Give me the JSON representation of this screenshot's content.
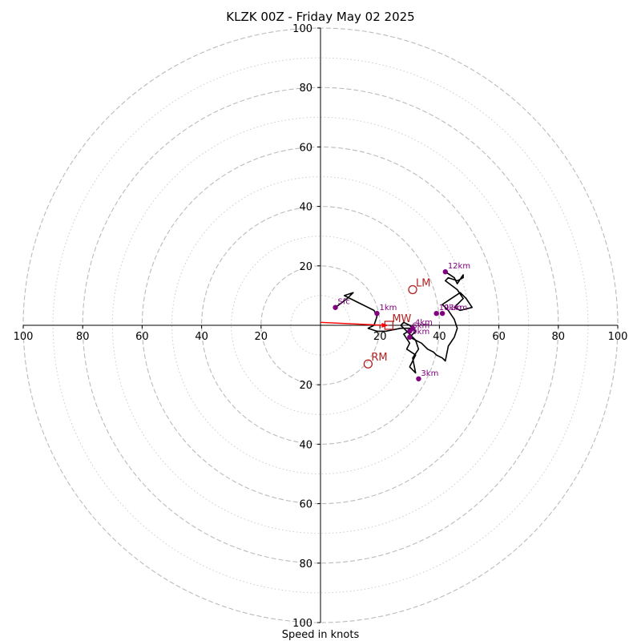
{
  "chart_data": {
    "type": "line",
    "chart_kind": "hodograph",
    "title": "KLZK 00Z - Friday May 02 2025",
    "xlabel": "Speed in knots",
    "ylabel": "",
    "xlim": [
      -100,
      100
    ],
    "ylim": [
      -100,
      100
    ],
    "rings_major": [
      20,
      40,
      60,
      80,
      100
    ],
    "rings_minor": [
      10,
      30,
      50,
      70,
      90
    ],
    "x_tick_labels": [
      "100",
      "80",
      "60",
      "40",
      "20",
      "20",
      "40",
      "60",
      "80",
      "100"
    ],
    "y_tick_labels": [
      "100",
      "80",
      "60",
      "40",
      "20",
      "20",
      "40",
      "60",
      "80",
      "100"
    ],
    "colors": {
      "trace": "#000000",
      "height_markers": "#800080",
      "motion_markers": "#b22222",
      "shear_vector": "#ff0000",
      "grid": "#bbbbbb"
    },
    "series": [
      {
        "x": [
          5,
          9,
          11,
          8,
          10,
          14,
          18,
          19,
          18,
          16,
          19,
          22,
          27,
          31,
          28,
          30,
          29,
          32,
          30,
          32,
          31,
          33,
          32,
          30,
          28,
          27,
          28,
          30,
          32,
          30,
          34,
          36,
          38,
          39,
          41,
          42,
          43,
          45,
          46,
          45,
          43,
          41,
          44,
          47,
          49,
          51,
          47,
          45,
          48,
          46,
          42,
          43,
          46,
          48,
          48,
          46,
          45,
          42
        ],
        "y": [
          6,
          9,
          11,
          10,
          9,
          7,
          5,
          3,
          0,
          -1,
          -2,
          -2,
          -1,
          -1,
          -3,
          -6,
          -8,
          -10,
          -14,
          -16,
          -11,
          -8,
          -5,
          -3,
          -1,
          0,
          1,
          0,
          -2,
          -4,
          -6,
          -8,
          -9,
          -10,
          -11,
          -12,
          -7,
          -4,
          -1,
          2,
          5,
          7,
          9,
          11,
          9,
          6,
          5,
          6,
          9,
          12,
          15,
          16,
          15,
          16,
          17,
          14,
          16,
          18
        ]
      }
    ],
    "height_markers": [
      {
        "label": "Sfc",
        "x": 5,
        "y": 6
      },
      {
        "label": "1km",
        "x": 19,
        "y": 4
      },
      {
        "label": "3km",
        "x": 33,
        "y": -18
      },
      {
        "label": "4km",
        "x": 31,
        "y": -1
      },
      {
        "label": "6km",
        "x": 30,
        "y": -2
      },
      {
        "label": "9km",
        "x": 30,
        "y": -4
      },
      {
        "label": "10km",
        "x": 39,
        "y": 4
      },
      {
        "label": "11km",
        "x": 41,
        "y": 4
      },
      {
        "label": "12km",
        "x": 42,
        "y": 18
      }
    ],
    "storm_motion": [
      {
        "label": "LM",
        "x": 31,
        "y": 12
      },
      {
        "label": "RM",
        "x": 16,
        "y": -13
      },
      {
        "label": "MW",
        "x": 23,
        "y": 0
      }
    ],
    "shear_vector": {
      "x": [
        0,
        23
      ],
      "y": [
        1,
        0
      ]
    }
  }
}
